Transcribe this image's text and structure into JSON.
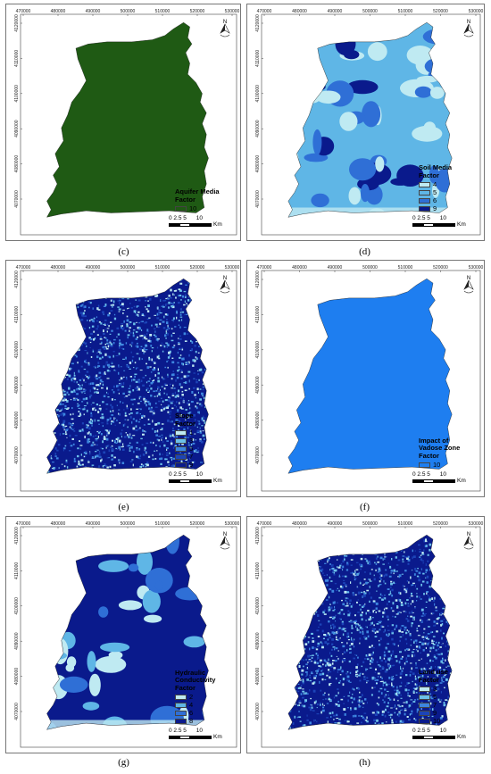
{
  "x_ticks": [
    "470000",
    "480000",
    "490000",
    "500000",
    "510000",
    "520000",
    "530000"
  ],
  "y_ticks": [
    "4120000",
    "4110000",
    "4100000",
    "4090000",
    "4080000",
    "4070000"
  ],
  "scale_bar": {
    "numbers": "0 2.5 5      10",
    "unit": "Km"
  },
  "north_arrow": {
    "icon": "north-arrow-icon",
    "letter": "N"
  },
  "panels": [
    {
      "label": "(c)",
      "legend_title": "Aquifer Media\nFactor",
      "classes": [
        {
          "value": "10",
          "color": "#1f5a14"
        }
      ]
    },
    {
      "label": "(d)",
      "legend_title": "Soil Media\nFactor",
      "classes": [
        {
          "value": "4",
          "color": "#bfeaf2"
        },
        {
          "value": "5",
          "color": "#5fb6e6"
        },
        {
          "value": "6",
          "color": "#2f6fd6"
        },
        {
          "value": "9",
          "color": "#0a1a8c"
        }
      ]
    },
    {
      "label": "(e)",
      "legend_title": "Slope\nFactor",
      "classes": [
        {
          "value": "1",
          "color": "#bfeaf2"
        },
        {
          "value": "3",
          "color": "#6cc0ea"
        },
        {
          "value": "5",
          "color": "#3d86e0"
        },
        {
          "value": "7",
          "color": "#1c44b8"
        },
        {
          "value": "9",
          "color": "#0a1a8c"
        }
      ]
    },
    {
      "label": "(f)",
      "legend_title": "Impact of\nVadose Zone\nFactor",
      "classes": [
        {
          "value": "10",
          "color": "#1e7ef0"
        }
      ]
    },
    {
      "label": "(g)",
      "legend_title": "Hydraulic\nConductivity\nFactor",
      "classes": [
        {
          "value": "2",
          "color": "#bfeaf2"
        },
        {
          "value": "4",
          "color": "#5fb6e6"
        },
        {
          "value": "6",
          "color": "#2f6fd6"
        },
        {
          "value": "8",
          "color": "#0a1a8c"
        }
      ]
    },
    {
      "label": "(h)",
      "legend_title": "Land use\nFactor",
      "classes": [
        {
          "value": "3",
          "color": "#bfeaf2"
        },
        {
          "value": "5",
          "color": "#6cc0ea"
        },
        {
          "value": "7",
          "color": "#3d86e0"
        },
        {
          "value": "9",
          "color": "#1c44b8"
        },
        {
          "value": "10",
          "color": "#0a1a8c"
        }
      ]
    }
  ]
}
